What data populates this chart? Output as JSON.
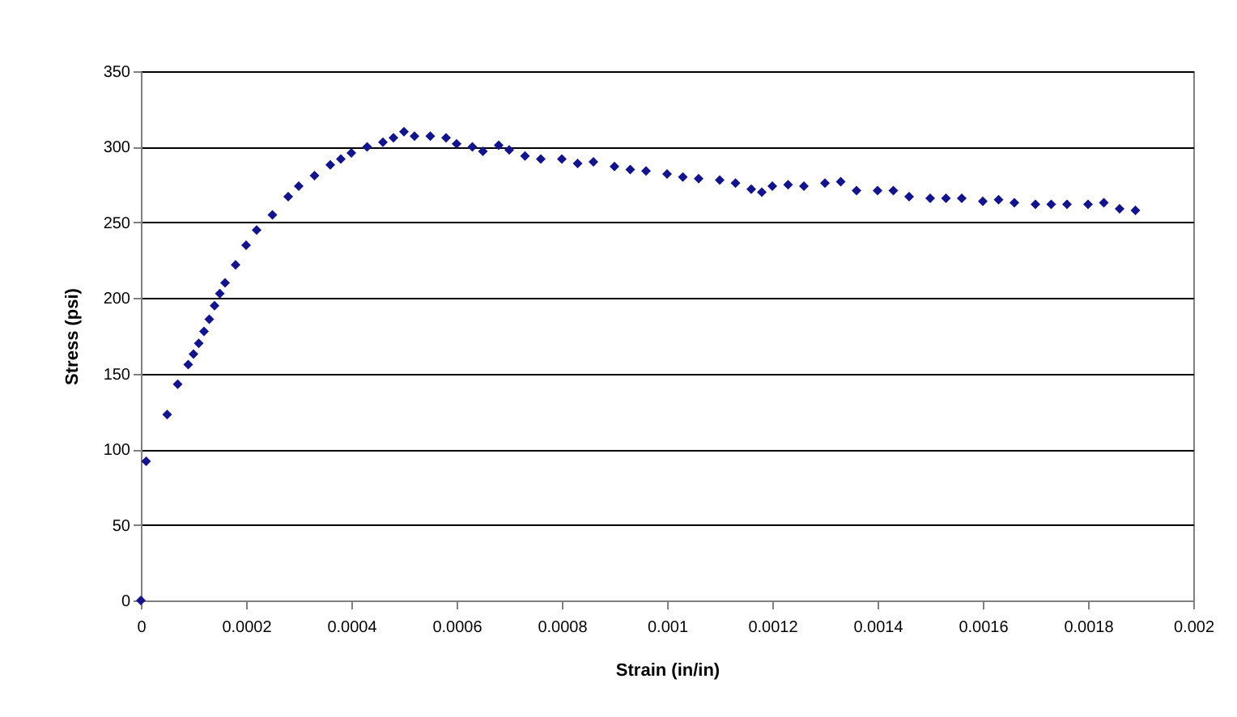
{
  "chart_data": {
    "type": "scatter",
    "xlabel": "Strain (in/in)",
    "ylabel": "Stress (psi)",
    "xlim": [
      0,
      0.002
    ],
    "xticks": [
      0,
      0.0002,
      0.0004,
      0.0006,
      0.0008,
      0.001,
      0.0012,
      0.0014,
      0.0016,
      0.0018,
      0.002
    ],
    "ylim": [
      0,
      350
    ],
    "yticks": [
      0,
      50,
      100,
      150,
      200,
      250,
      300,
      350
    ],
    "grid": "y",
    "marker": "diamond",
    "legend": false,
    "series": [
      {
        "color": "#14148a",
        "x": [
          0,
          1e-05,
          5e-05,
          7e-05,
          9e-05,
          0.0001,
          0.00011,
          0.00012,
          0.00013,
          0.00014,
          0.00015,
          0.00016,
          0.00018,
          0.0002,
          0.00022,
          0.00025,
          0.00028,
          0.0003,
          0.00033,
          0.00036,
          0.00038,
          0.0004,
          0.00043,
          0.00046,
          0.00048,
          0.0005,
          0.00052,
          0.00055,
          0.00058,
          0.0006,
          0.00063,
          0.00065,
          0.00068,
          0.0007,
          0.00073,
          0.00076,
          0.0008,
          0.00083,
          0.00086,
          0.0009,
          0.00093,
          0.00096,
          0.001,
          0.00103,
          0.00106,
          0.0011,
          0.00113,
          0.00116,
          0.00118,
          0.0012,
          0.00123,
          0.00126,
          0.0013,
          0.00133,
          0.00136,
          0.0014,
          0.00143,
          0.00146,
          0.0015,
          0.00153,
          0.00156,
          0.0016,
          0.00163,
          0.00166,
          0.0017,
          0.00173,
          0.00176,
          0.0018,
          0.00183,
          0.00186,
          0.00189
        ],
        "values": [
          0,
          92,
          123,
          143,
          156,
          163,
          170,
          178,
          186,
          195,
          203,
          210,
          222,
          235,
          245,
          255,
          267,
          274,
          281,
          288,
          292,
          296,
          300,
          303,
          306,
          310,
          307,
          307,
          306,
          302,
          300,
          297,
          301,
          298,
          294,
          292,
          292,
          289,
          290,
          287,
          285,
          284,
          282,
          280,
          279,
          278,
          276,
          272,
          270,
          274,
          275,
          274,
          276,
          277,
          271,
          271,
          271,
          267,
          266,
          266,
          266,
          264,
          265,
          263,
          262,
          262,
          262,
          262,
          263,
          259,
          258
        ]
      }
    ]
  }
}
